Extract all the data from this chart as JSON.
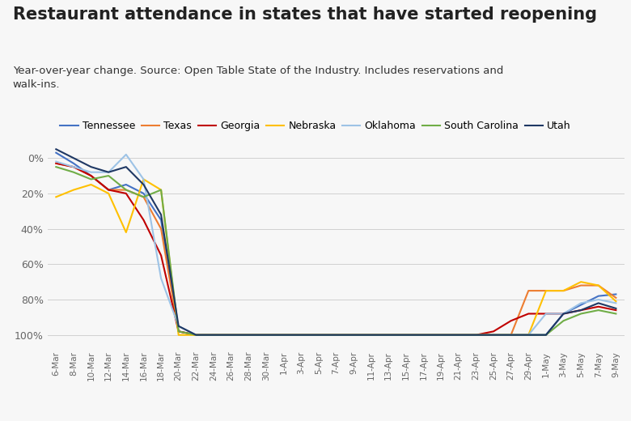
{
  "title": "Restaurant attendance in states that have started reopening",
  "subtitle": "Year-over-year change. Source: Open Table State of the Industry. Includes reservations and\nwalk-ins.",
  "title_fontsize": 15,
  "subtitle_fontsize": 9.5,
  "background_color": "#f7f7f7",
  "series": {
    "Tennessee": {
      "color": "#4472c4",
      "data": {
        "6-Mar": 3,
        "8-Mar": -3,
        "10-Mar": -10,
        "12-Mar": -18,
        "14-Mar": -15,
        "16-Mar": -20,
        "18-Mar": -35,
        "20-Mar": -98,
        "22-Mar": -100,
        "24-Mar": -100,
        "26-Mar": -100,
        "28-Mar": -100,
        "30-Mar": -100,
        "1-Apr": -100,
        "3-Apr": -100,
        "5-Apr": -100,
        "7-Apr": -100,
        "9-Apr": -100,
        "11-Apr": -100,
        "13-Apr": -100,
        "15-Apr": -100,
        "17-Apr": -100,
        "19-Apr": -100,
        "21-Apr": -100,
        "23-Apr": -100,
        "25-Apr": -100,
        "27-Apr": -100,
        "29-Apr": -100,
        "1-May": -100,
        "3-May": -88,
        "5-May": -83,
        "7-May": -78,
        "9-May": -77
      }
    },
    "Texas": {
      "color": "#ed7d31",
      "data": {
        "6-Mar": -3,
        "8-Mar": -5,
        "10-Mar": -10,
        "12-Mar": -18,
        "14-Mar": -18,
        "16-Mar": -22,
        "18-Mar": -40,
        "20-Mar": -98,
        "22-Mar": -100,
        "24-Mar": -100,
        "26-Mar": -100,
        "28-Mar": -100,
        "30-Mar": -100,
        "1-Apr": -100,
        "3-Apr": -100,
        "5-Apr": -100,
        "7-Apr": -100,
        "9-Apr": -100,
        "11-Apr": -100,
        "13-Apr": -100,
        "15-Apr": -100,
        "17-Apr": -100,
        "19-Apr": -100,
        "21-Apr": -100,
        "23-Apr": -100,
        "25-Apr": -100,
        "27-Apr": -100,
        "29-Apr": -75,
        "1-May": -75,
        "3-May": -75,
        "5-May": -72,
        "7-May": -72,
        "9-May": -79
      }
    },
    "Georgia": {
      "color": "#c00000",
      "data": {
        "6-Mar": -3,
        "8-Mar": -5,
        "10-Mar": -10,
        "12-Mar": -18,
        "14-Mar": -20,
        "16-Mar": -35,
        "18-Mar": -55,
        "20-Mar": -98,
        "22-Mar": -100,
        "24-Mar": -100,
        "26-Mar": -100,
        "28-Mar": -100,
        "30-Mar": -100,
        "1-Apr": -100,
        "3-Apr": -100,
        "5-Apr": -100,
        "7-Apr": -100,
        "9-Apr": -100,
        "11-Apr": -100,
        "13-Apr": -100,
        "15-Apr": -100,
        "17-Apr": -100,
        "19-Apr": -100,
        "21-Apr": -100,
        "23-Apr": -100,
        "25-Apr": -98,
        "27-Apr": -92,
        "29-Apr": -88,
        "1-May": -88,
        "3-May": -88,
        "5-May": -86,
        "7-May": -84,
        "9-May": -86
      }
    },
    "Nebraska": {
      "color": "#ffc000",
      "data": {
        "6-Mar": -22,
        "8-Mar": -18,
        "10-Mar": -15,
        "12-Mar": -20,
        "14-Mar": -42,
        "16-Mar": -12,
        "18-Mar": -18,
        "20-Mar": -100,
        "22-Mar": -100,
        "24-Mar": -100,
        "26-Mar": -100,
        "28-Mar": -100,
        "30-Mar": -100,
        "1-Apr": -100,
        "3-Apr": -100,
        "5-Apr": -100,
        "7-Apr": -100,
        "9-Apr": -100,
        "11-Apr": -100,
        "13-Apr": -100,
        "15-Apr": -100,
        "17-Apr": -100,
        "19-Apr": -100,
        "21-Apr": -100,
        "23-Apr": -100,
        "25-Apr": -100,
        "27-Apr": -100,
        "29-Apr": -100,
        "1-May": -75,
        "3-May": -75,
        "5-May": -70,
        "7-May": -72,
        "9-May": -81
      }
    },
    "Oklahoma": {
      "color": "#9dc3e6",
      "data": {
        "6-Mar": -2,
        "8-Mar": -5,
        "10-Mar": -8,
        "12-Mar": -8,
        "14-Mar": 2,
        "16-Mar": -12,
        "18-Mar": -68,
        "20-Mar": -95,
        "22-Mar": -100,
        "24-Mar": -100,
        "26-Mar": -100,
        "28-Mar": -100,
        "30-Mar": -100,
        "1-Apr": -100,
        "3-Apr": -100,
        "5-Apr": -100,
        "7-Apr": -100,
        "9-Apr": -100,
        "11-Apr": -100,
        "13-Apr": -100,
        "15-Apr": -100,
        "17-Apr": -100,
        "19-Apr": -100,
        "21-Apr": -100,
        "23-Apr": -100,
        "25-Apr": -100,
        "27-Apr": -100,
        "29-Apr": -100,
        "1-May": -88,
        "3-May": -88,
        "5-May": -82,
        "7-May": -80,
        "9-May": -82
      }
    },
    "South Carolina": {
      "color": "#70ad47",
      "data": {
        "6-Mar": -5,
        "8-Mar": -8,
        "10-Mar": -12,
        "12-Mar": -10,
        "14-Mar": -18,
        "16-Mar": -22,
        "18-Mar": -18,
        "20-Mar": -98,
        "22-Mar": -100,
        "24-Mar": -100,
        "26-Mar": -100,
        "28-Mar": -100,
        "30-Mar": -100,
        "1-Apr": -100,
        "3-Apr": -100,
        "5-Apr": -100,
        "7-Apr": -100,
        "9-Apr": -100,
        "11-Apr": -100,
        "13-Apr": -100,
        "15-Apr": -100,
        "17-Apr": -100,
        "19-Apr": -100,
        "21-Apr": -100,
        "23-Apr": -100,
        "25-Apr": -100,
        "27-Apr": -100,
        "29-Apr": -100,
        "1-May": -100,
        "3-May": -92,
        "5-May": -88,
        "7-May": -86,
        "9-May": -88
      }
    },
    "Utah": {
      "color": "#1f3864",
      "data": {
        "6-Mar": 5,
        "8-Mar": 0,
        "10-Mar": -5,
        "12-Mar": -8,
        "14-Mar": -5,
        "16-Mar": -15,
        "18-Mar": -32,
        "20-Mar": -95,
        "22-Mar": -100,
        "24-Mar": -100,
        "26-Mar": -100,
        "28-Mar": -100,
        "30-Mar": -100,
        "1-Apr": -100,
        "3-Apr": -100,
        "5-Apr": -100,
        "7-Apr": -100,
        "9-Apr": -100,
        "11-Apr": -100,
        "13-Apr": -100,
        "15-Apr": -100,
        "17-Apr": -100,
        "19-Apr": -100,
        "21-Apr": -100,
        "23-Apr": -100,
        "25-Apr": -100,
        "27-Apr": -100,
        "29-Apr": -100,
        "1-May": -100,
        "3-May": -88,
        "5-May": -86,
        "7-May": -82,
        "9-May": -85
      }
    }
  },
  "yticks": [
    0,
    -20,
    -40,
    -60,
    -80,
    -100
  ],
  "ylabels": [
    "0%",
    "20%",
    "40%",
    "60%",
    "80%",
    "100%"
  ],
  "ylim": [
    -107,
    12
  ],
  "xtick_labels": [
    "6-Mar",
    "8-Mar",
    "10-Mar",
    "12-Mar",
    "14-Mar",
    "16-Mar",
    "18-Mar",
    "20-Mar",
    "22-Mar",
    "24-Mar",
    "26-Mar",
    "28-Mar",
    "30-Mar",
    "1-Apr",
    "3-Apr",
    "5-Apr",
    "7-Apr",
    "9-Apr",
    "11-Apr",
    "13-Apr",
    "15-Apr",
    "17-Apr",
    "19-Apr",
    "21-Apr",
    "23-Apr",
    "25-Apr",
    "27-Apr",
    "29-Apr",
    "1-May",
    "3-May",
    "5-May",
    "7-May",
    "9-May"
  ]
}
